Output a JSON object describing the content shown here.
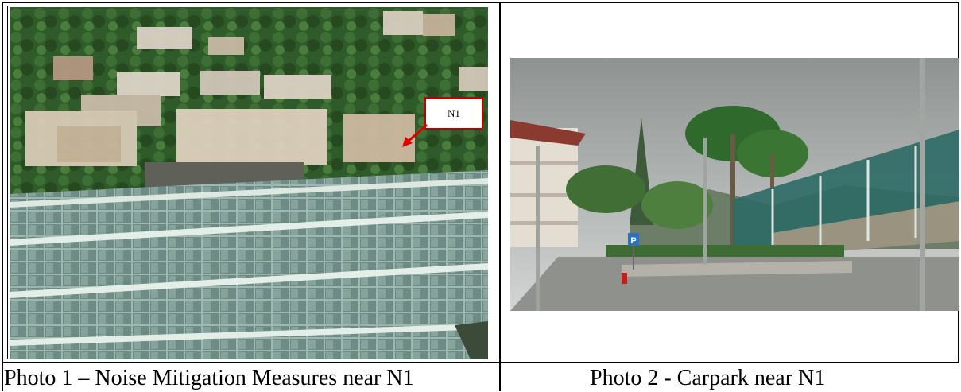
{
  "photo1": {
    "caption": "Photo 1 – Noise Mitigation Measures near N1",
    "marker_label": "N1"
  },
  "photo2": {
    "caption": "Photo 2 - Carpark near N1"
  }
}
